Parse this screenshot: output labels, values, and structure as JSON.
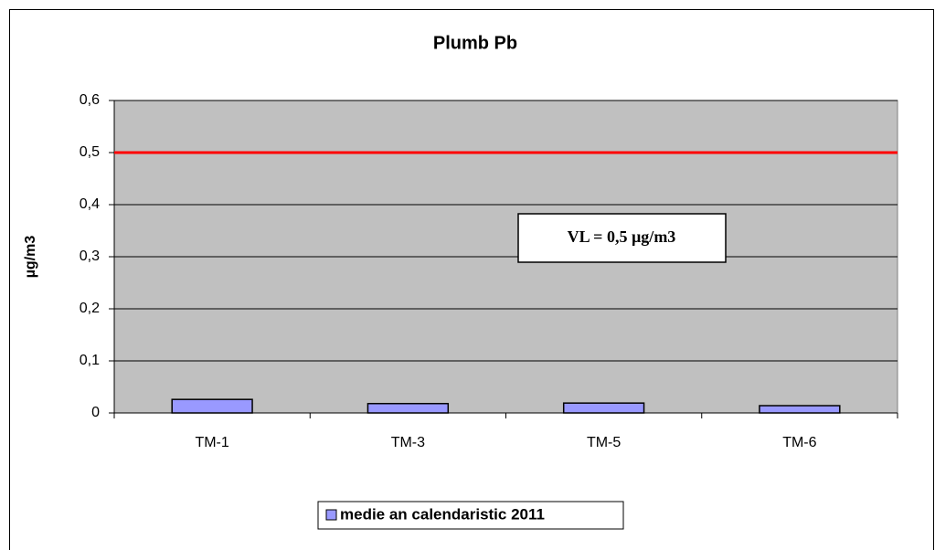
{
  "chart_data": {
    "type": "bar",
    "title": "Plumb Pb",
    "y_label": "µg/m3",
    "categories": [
      "TM-1",
      "TM-3",
      "TM-5",
      "TM-6"
    ],
    "series": [
      {
        "name": "medie an calendaristic 2011",
        "color": "#9999ff",
        "values": [
          0.026,
          0.018,
          0.019,
          0.014
        ]
      }
    ],
    "ylim": [
      0,
      0.6
    ],
    "yticks": [
      0,
      {
        "value": 0.1,
        "label": "0,1"
      },
      {
        "value": 0.2,
        "label": "0,2"
      },
      {
        "value": 0.3,
        "label": "0,3"
      },
      {
        "value": 0.4,
        "label": "0,4"
      },
      {
        "value": 0.5,
        "label": "0,5"
      },
      {
        "value": 0.6,
        "label": "0,6"
      }
    ],
    "grid": true,
    "reference_line": {
      "value": 0.5,
      "color": "#ff0000"
    },
    "annotation": "VL = 0,5 µg/m3",
    "legend": "bottom"
  }
}
